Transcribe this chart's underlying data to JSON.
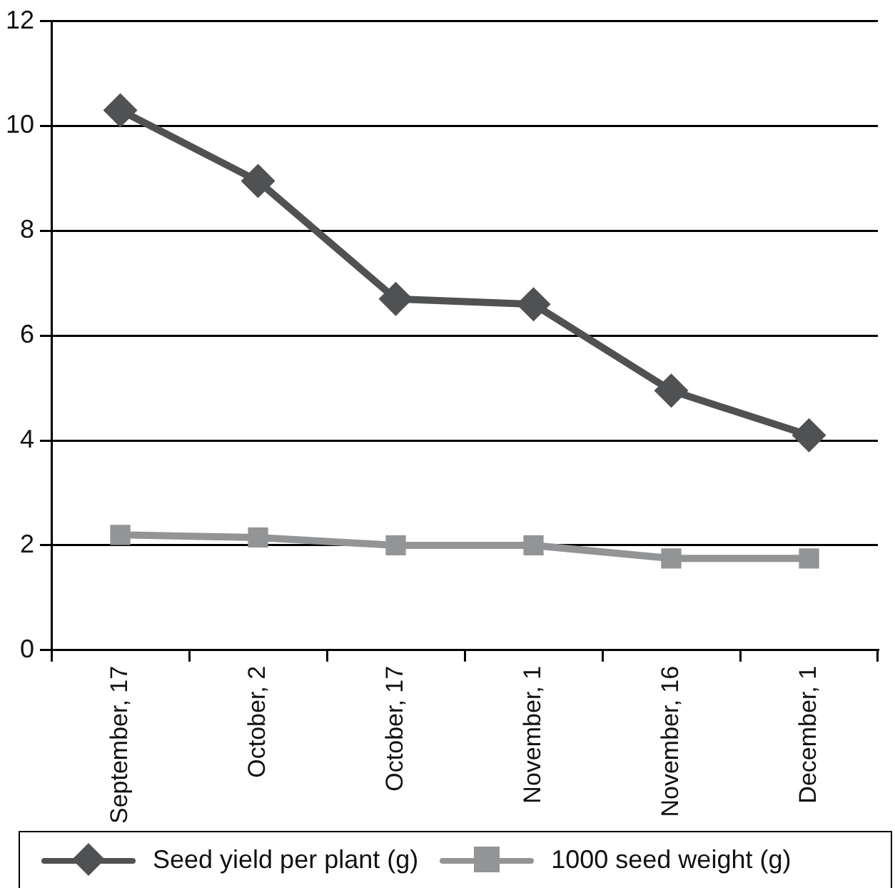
{
  "chart_data": {
    "type": "line",
    "categories": [
      "September, 17",
      "October, 2",
      "October, 17",
      "November, 1",
      "November, 16",
      "December, 1"
    ],
    "series": [
      {
        "name": "Seed yield per plant (g)",
        "color": "#505152",
        "marker": "diamond",
        "values": [
          10.3,
          8.95,
          6.7,
          6.6,
          4.95,
          4.1
        ]
      },
      {
        "name": "1000 seed weight (g)",
        "color": "#939496",
        "marker": "square",
        "values": [
          2.2,
          2.15,
          2.0,
          2.0,
          1.75,
          1.75
        ]
      }
    ],
    "ylim": [
      0,
      12
    ],
    "yticks": [
      0,
      2,
      4,
      6,
      8,
      10,
      12
    ],
    "grid": "y",
    "legend": "bottom",
    "line_style": "solid"
  }
}
